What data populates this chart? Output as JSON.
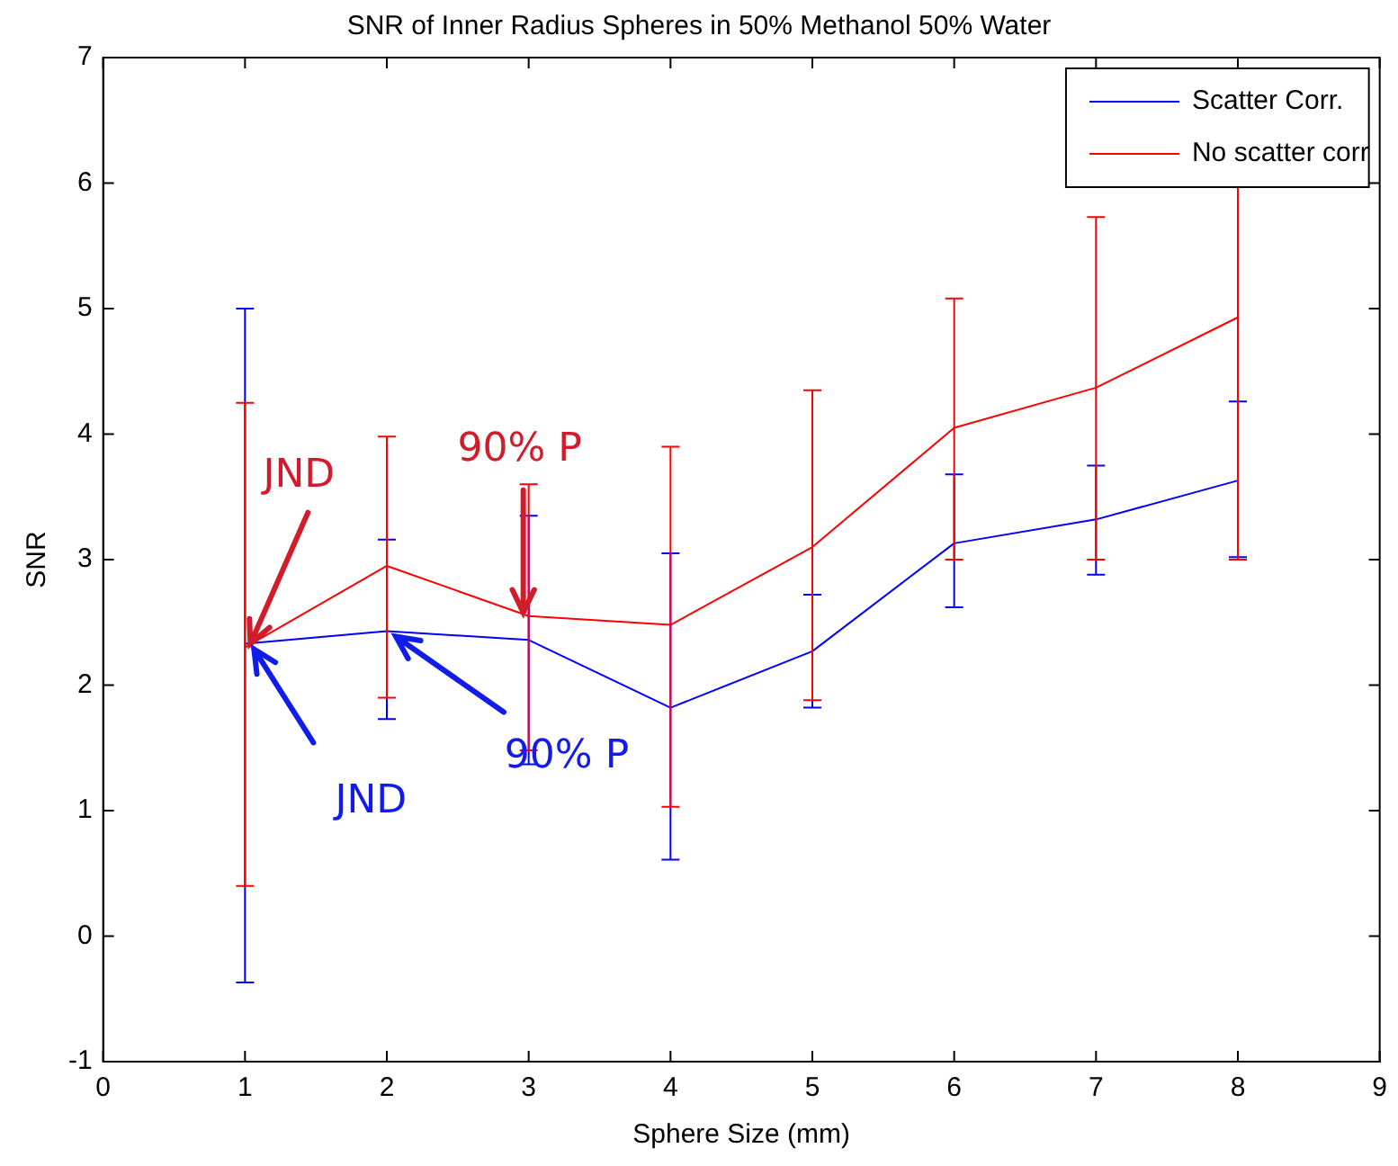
{
  "chart_data": {
    "type": "line",
    "title": "SNR of Inner Radius Spheres in 50% Methanol 50% Water",
    "xlabel": "Sphere Size (mm)",
    "ylabel": "SNR",
    "x": [
      1,
      2,
      3,
      4,
      5,
      6,
      7,
      8
    ],
    "series": [
      {
        "name": "Scatter Corr.",
        "color": "#0000ff",
        "values": [
          2.33,
          2.43,
          2.36,
          1.82,
          2.27,
          3.13,
          3.32,
          3.63
        ],
        "errors": [
          [
            -0.37,
            5.0
          ],
          [
            1.73,
            3.16
          ],
          [
            1.37,
            3.35
          ],
          [
            0.61,
            3.05
          ],
          [
            1.82,
            2.72
          ],
          [
            2.62,
            3.68
          ],
          [
            2.88,
            3.75
          ],
          [
            3.02,
            4.26
          ]
        ]
      },
      {
        "name": "No scatter corr",
        "color": "#ff0000",
        "values": [
          2.3,
          2.95,
          2.55,
          2.48,
          3.1,
          4.05,
          4.37,
          4.93
        ],
        "errors": [
          [
            0.4,
            4.25
          ],
          [
            1.9,
            3.98
          ],
          [
            1.48,
            3.6
          ],
          [
            1.03,
            3.9
          ],
          [
            1.88,
            4.35
          ],
          [
            3.0,
            5.08
          ],
          [
            3.0,
            5.73
          ],
          [
            3.0,
            6.88
          ]
        ]
      }
    ],
    "annotations": [
      {
        "text": "JND",
        "x": 1,
        "y": 2.3
      },
      {
        "text": "90% P",
        "x": 3,
        "y": 2.55
      },
      {
        "text": "JND",
        "x": 1,
        "y": 2.33
      },
      {
        "text": "90% P",
        "x": 2,
        "y": 2.43
      }
    ],
    "xlim": [
      0,
      9
    ],
    "xticks": [
      0,
      1,
      2,
      3,
      4,
      5,
      6,
      7,
      8,
      9
    ],
    "ylim": [
      -1,
      7
    ],
    "yticks": [
      -1,
      0,
      1,
      2,
      3,
      4,
      5,
      6,
      7
    ],
    "grid": false,
    "legend": "top right",
    "marker": "none",
    "line_style": "solid"
  }
}
